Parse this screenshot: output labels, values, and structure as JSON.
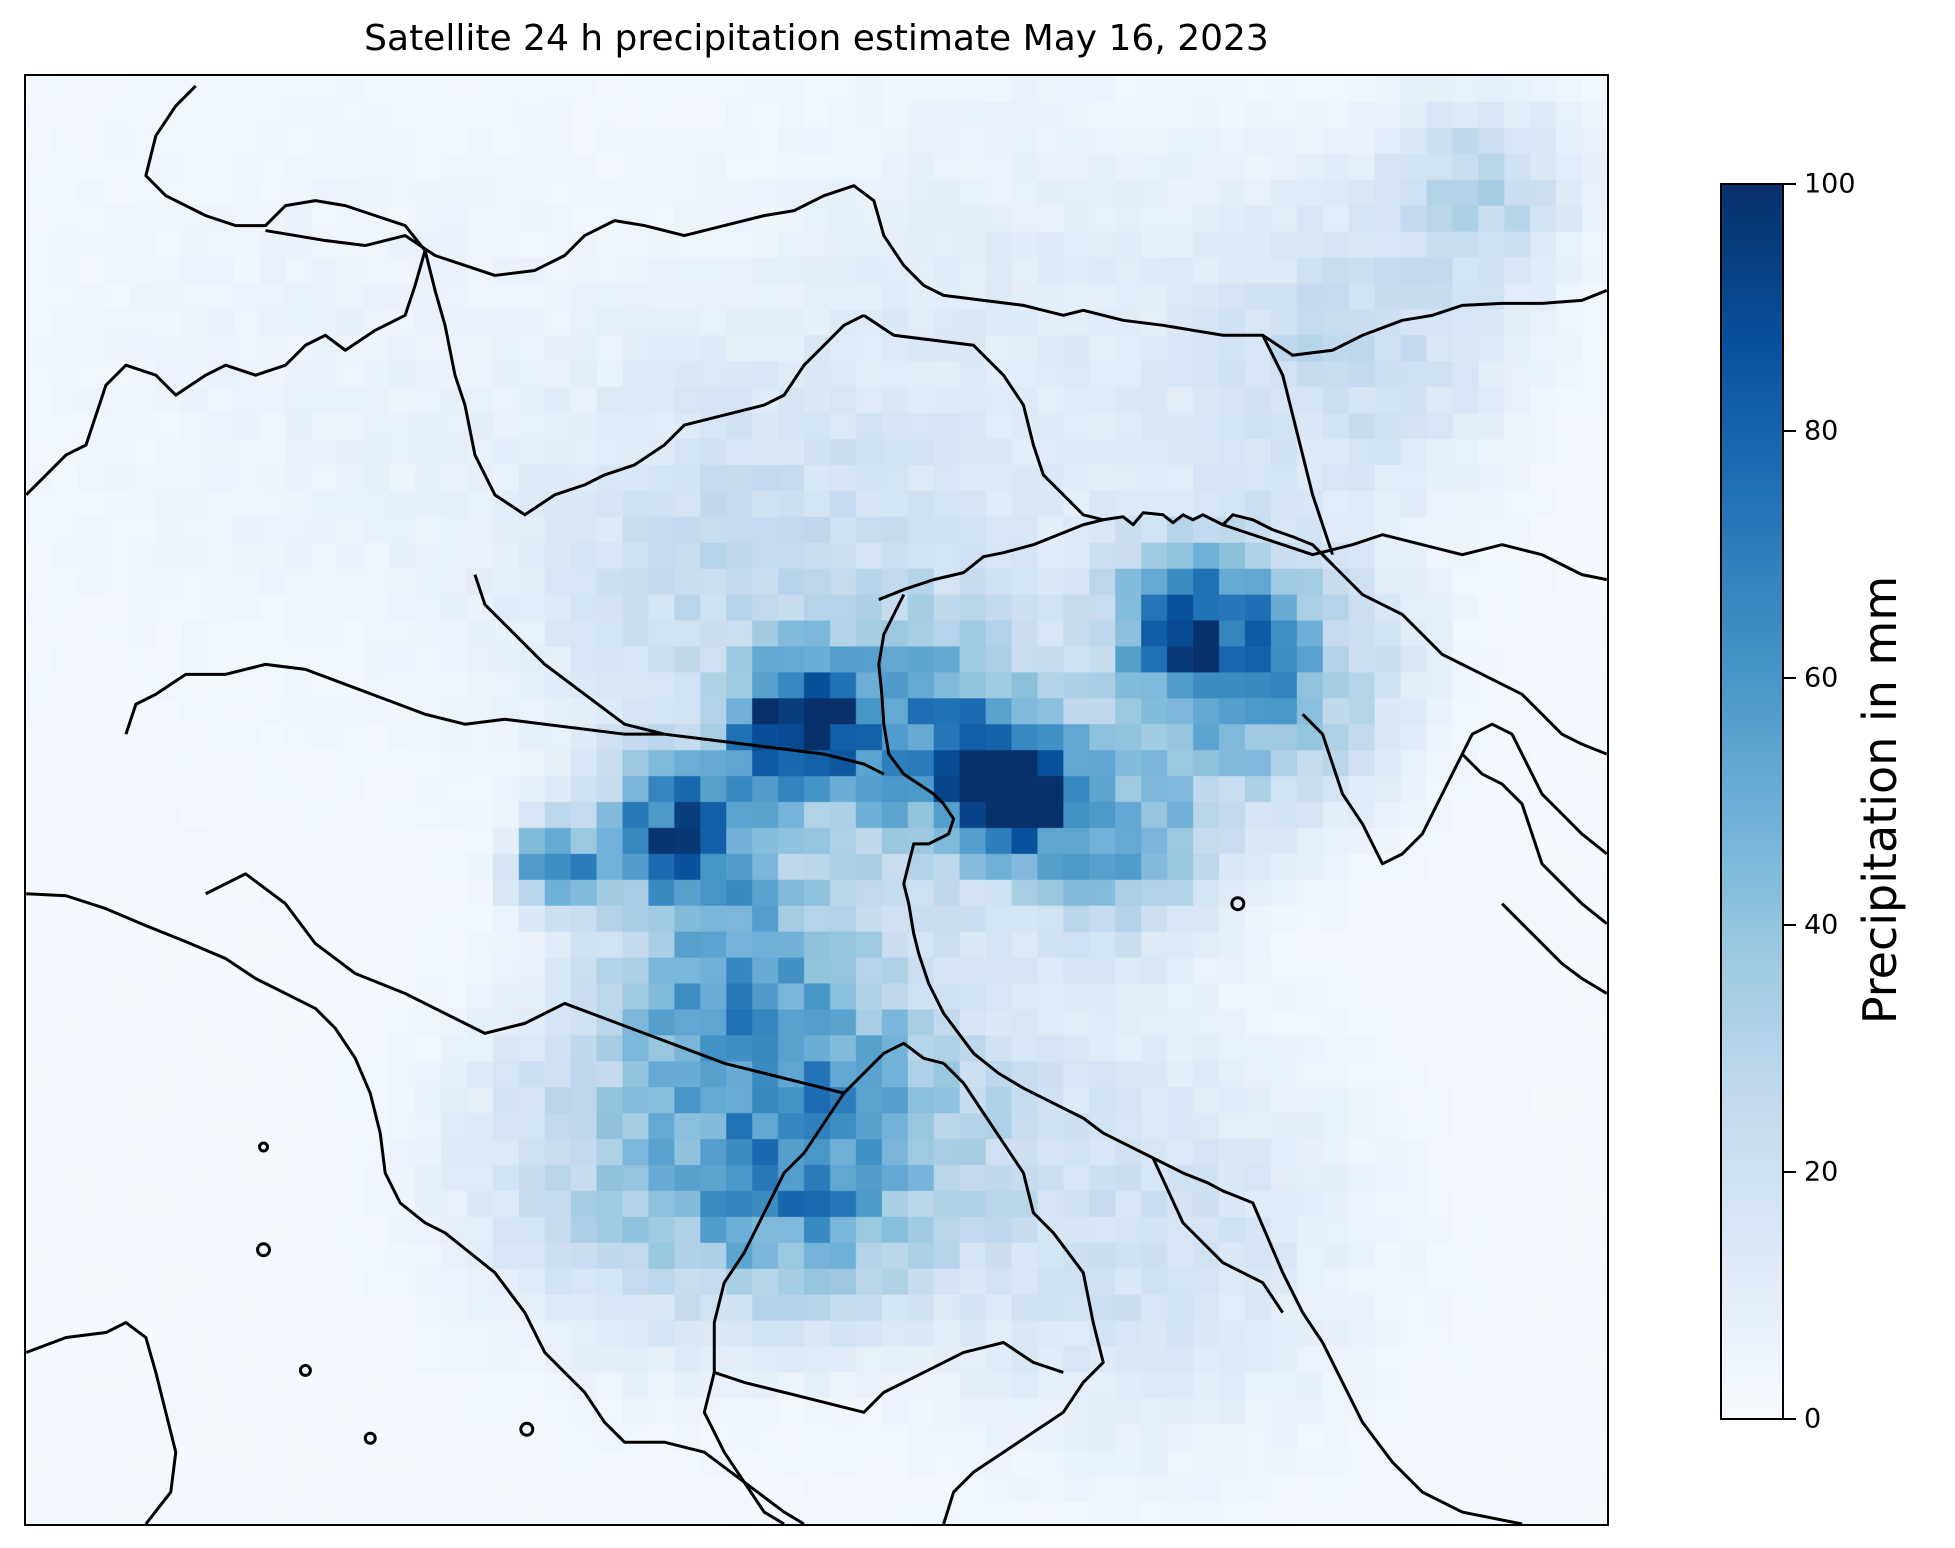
{
  "title": "Satellite 24 h precipitation estimate May 16, 2023",
  "colorbar": {
    "label": "Precipitation in mm",
    "ticks": [
      "0",
      "20",
      "40",
      "60",
      "80",
      "100"
    ],
    "min": 0,
    "max": 100,
    "colormap": "Blues"
  },
  "map": {
    "coastlines": true,
    "borders": true,
    "field": "24 h precipitation (mm)"
  },
  "colors": {
    "low": "#f7fbff",
    "high": "#08306b",
    "outline": "#000000"
  }
}
